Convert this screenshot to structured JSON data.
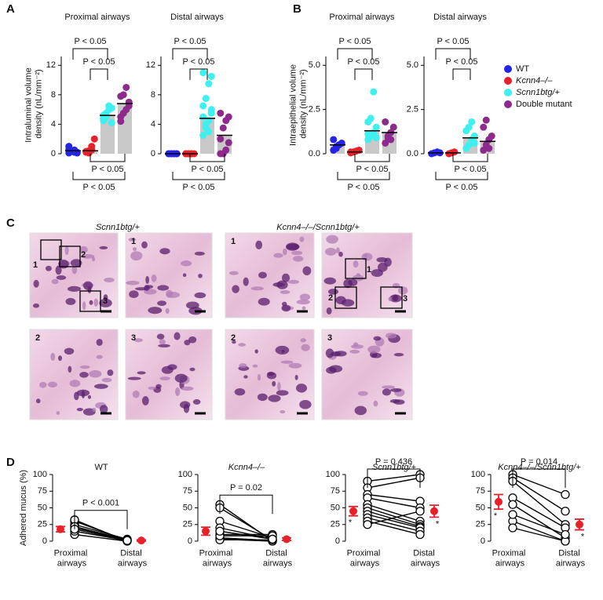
{
  "panels": [
    "A",
    "B",
    "C",
    "D"
  ],
  "chart_data": [
    {
      "type": "dot",
      "title": "Proximal airways",
      "ylabel": "Intraluminal volume density (nL/mm⁻²)",
      "ylim": [
        0,
        13.2
      ],
      "yticks": [
        0,
        4,
        8,
        12
      ],
      "series": [
        {
          "name": "WT",
          "color": "#2424e6",
          "values": [
            0.1,
            0.3,
            0.5,
            0.2,
            1.0,
            0.4,
            0.2,
            0.1,
            0.6
          ],
          "mean": 0.4
        },
        {
          "name": "Kcnn4–/–",
          "color": "#e8202a",
          "values": [
            0.2,
            0.4,
            1.0,
            2.0,
            0.3,
            0.1,
            0.5
          ],
          "mean": 0.4
        },
        {
          "name": "Scnn1btg/+",
          "color": "#3ef0f0",
          "values": [
            4.5,
            5.0,
            6.0,
            6.2,
            4.8,
            5.5,
            6.5,
            4.2,
            5.2
          ],
          "mean": 5.2
        },
        {
          "name": "Double mutant",
          "color": "#8e2a8e",
          "values": [
            4.4,
            5.5,
            6.0,
            7.0,
            7.8,
            8.0,
            9.0,
            6.5,
            5.0
          ],
          "mean": 6.8
        }
      ],
      "annotations": [
        "P < 0.05",
        "P < 0.05",
        "P < 0.05",
        "P < 0.05"
      ]
    },
    {
      "type": "dot",
      "title": "Distal airways",
      "ylim": [
        0,
        13.2
      ],
      "yticks": [
        0,
        4,
        8,
        12
      ],
      "series": [
        {
          "values": [
            0,
            0,
            0,
            0,
            0,
            0,
            0,
            0
          ],
          "mean": 0
        },
        {
          "values": [
            0,
            0,
            0,
            0,
            0,
            0,
            0
          ],
          "mean": 0
        },
        {
          "values": [
            2.5,
            3.5,
            4.5,
            5.5,
            6.5,
            7.5,
            9.5,
            10.5,
            11.0,
            4.0,
            3.0,
            6.0,
            5.0
          ],
          "mean": 4.8
        },
        {
          "values": [
            0,
            0,
            0.5,
            1.5,
            2.0,
            3.5,
            4.5,
            5.0,
            5.5
          ],
          "mean": 2.5
        }
      ],
      "annotations": [
        "P < 0.05",
        "P < 0.05",
        "P < 0.05",
        "P < 0.05"
      ]
    },
    {
      "type": "dot",
      "title": "Proximal airways",
      "ylabel": "Intraepithelial volume density (nL/mm⁻²)",
      "ylim": [
        0,
        5.5
      ],
      "yticks": [
        {
          "value": 0,
          "label": "0.0"
        },
        {
          "value": 2.5,
          "label": "2.5"
        },
        {
          "value": 5,
          "label": "5.0"
        }
      ],
      "series": [
        {
          "values": [
            0.2,
            0.3,
            0.5,
            0.6,
            0.8,
            0.4,
            0.5
          ],
          "mean": 0.5
        },
        {
          "values": [
            0.05,
            0.1,
            0.15,
            0.2,
            0.1
          ],
          "mean": 0.1
        },
        {
          "values": [
            0.8,
            1.0,
            1.2,
            1.5,
            1.8,
            2.0,
            3.5,
            0.9,
            1.1
          ],
          "mean": 1.3
        },
        {
          "values": [
            0.6,
            0.9,
            1.2,
            1.5,
            1.8,
            1.0,
            0.8
          ],
          "mean": 1.2
        }
      ],
      "annotations": [
        "P < 0.05",
        "P < 0.05",
        "P < 0.05",
        "P < 0.05"
      ]
    },
    {
      "type": "dot",
      "title": "Distal airways",
      "ylim": [
        0,
        5.5
      ],
      "yticks": [
        {
          "value": 0,
          "label": "0.0"
        },
        {
          "value": 2.5,
          "label": "2.5"
        },
        {
          "value": 5,
          "label": "5.0"
        }
      ],
      "series": [
        {
          "values": [
            0,
            0.05,
            0.1,
            0.05
          ],
          "mean": 0.05
        },
        {
          "values": [
            0,
            0.05,
            0.1
          ],
          "mean": 0.05
        },
        {
          "values": [
            0.3,
            0.5,
            0.8,
            1.0,
            1.3,
            1.5,
            1.8,
            0.6
          ],
          "mean": 0.9
        },
        {
          "values": [
            0.2,
            0.5,
            0.8,
            1.0,
            1.5,
            1.9,
            0.3
          ],
          "mean": 0.7
        }
      ],
      "annotations": [
        "P < 0.05",
        "P < 0.05",
        "P < 0.05",
        "P < 0.05"
      ]
    },
    {
      "type": "paired",
      "title": "WT",
      "ylabel": "Adhered mucus (%)",
      "categories": [
        "Proximal airways",
        "Distal airways"
      ],
      "ylim": [
        0,
        100
      ],
      "yticks": [
        0,
        25,
        50,
        75,
        100
      ],
      "proximal": [
        10,
        15,
        20,
        25,
        30,
        32,
        22,
        18
      ],
      "distal": [
        0,
        1,
        2,
        3,
        1,
        0,
        2,
        1
      ],
      "mean": [
        18,
        1
      ],
      "error": [
        4,
        1
      ],
      "color": "#e8202a",
      "annotation": "P < 0.001"
    },
    {
      "type": "paired",
      "title": "Kcnn4–/–",
      "categories": [
        "Proximal airways",
        "Distal airways"
      ],
      "ylim": [
        0,
        100
      ],
      "yticks": [
        0,
        25,
        50,
        75,
        100
      ],
      "proximal": [
        55,
        50,
        30,
        20,
        10,
        5,
        3,
        2,
        8,
        15
      ],
      "distal": [
        0,
        2,
        5,
        3,
        10,
        1,
        0,
        2,
        8,
        3
      ],
      "mean": [
        15,
        3
      ],
      "error": [
        6,
        2
      ],
      "color": "#e8202a",
      "annotation": "P = 0.02"
    },
    {
      "type": "paired",
      "title": "Scnn1btg/+",
      "categories": [
        "Proximal airways",
        "Distal airways"
      ],
      "ylim": [
        0,
        100
      ],
      "yticks": [
        0,
        25,
        50,
        75,
        100
      ],
      "proximal": [
        90,
        80,
        70,
        65,
        55,
        50,
        45,
        40,
        35,
        30,
        25
      ],
      "distal": [
        100,
        95,
        60,
        50,
        30,
        25,
        22,
        20,
        15,
        10,
        45
      ],
      "mean": [
        45,
        45
      ],
      "error": [
        7,
        9
      ],
      "color": "#e8202a",
      "annotation": "P = 0.436",
      "markers": [
        "*",
        "*"
      ]
    },
    {
      "type": "paired",
      "title": "Kcnn4–/–/Scnn1btg/+",
      "categories": [
        "Proximal airways",
        "Distal airways"
      ],
      "ylim": [
        0,
        100
      ],
      "yticks": [
        0,
        25,
        50,
        75,
        100
      ],
      "proximal": [
        100,
        95,
        90,
        65,
        55,
        30,
        20,
        40
      ],
      "distal": [
        70,
        45,
        25,
        20,
        5,
        0,
        0,
        10
      ],
      "mean": [
        59,
        25
      ],
      "error": [
        11,
        8
      ],
      "color": "#e8202a",
      "annotation": "P = 0.014",
      "markers": [
        "*",
        "*"
      ]
    }
  ],
  "micrographs": {
    "titles": [
      "Scnn1btg/+",
      "Kcnn4–/–/Scnn1btg/+"
    ],
    "tiles": [
      [
        "1",
        "2",
        "3"
      ],
      [
        "1"
      ],
      [
        "1"
      ],
      [
        "1",
        "2",
        "3"
      ],
      [
        "2"
      ],
      [
        "3"
      ],
      [
        "2"
      ],
      [
        "3"
      ]
    ]
  }
}
